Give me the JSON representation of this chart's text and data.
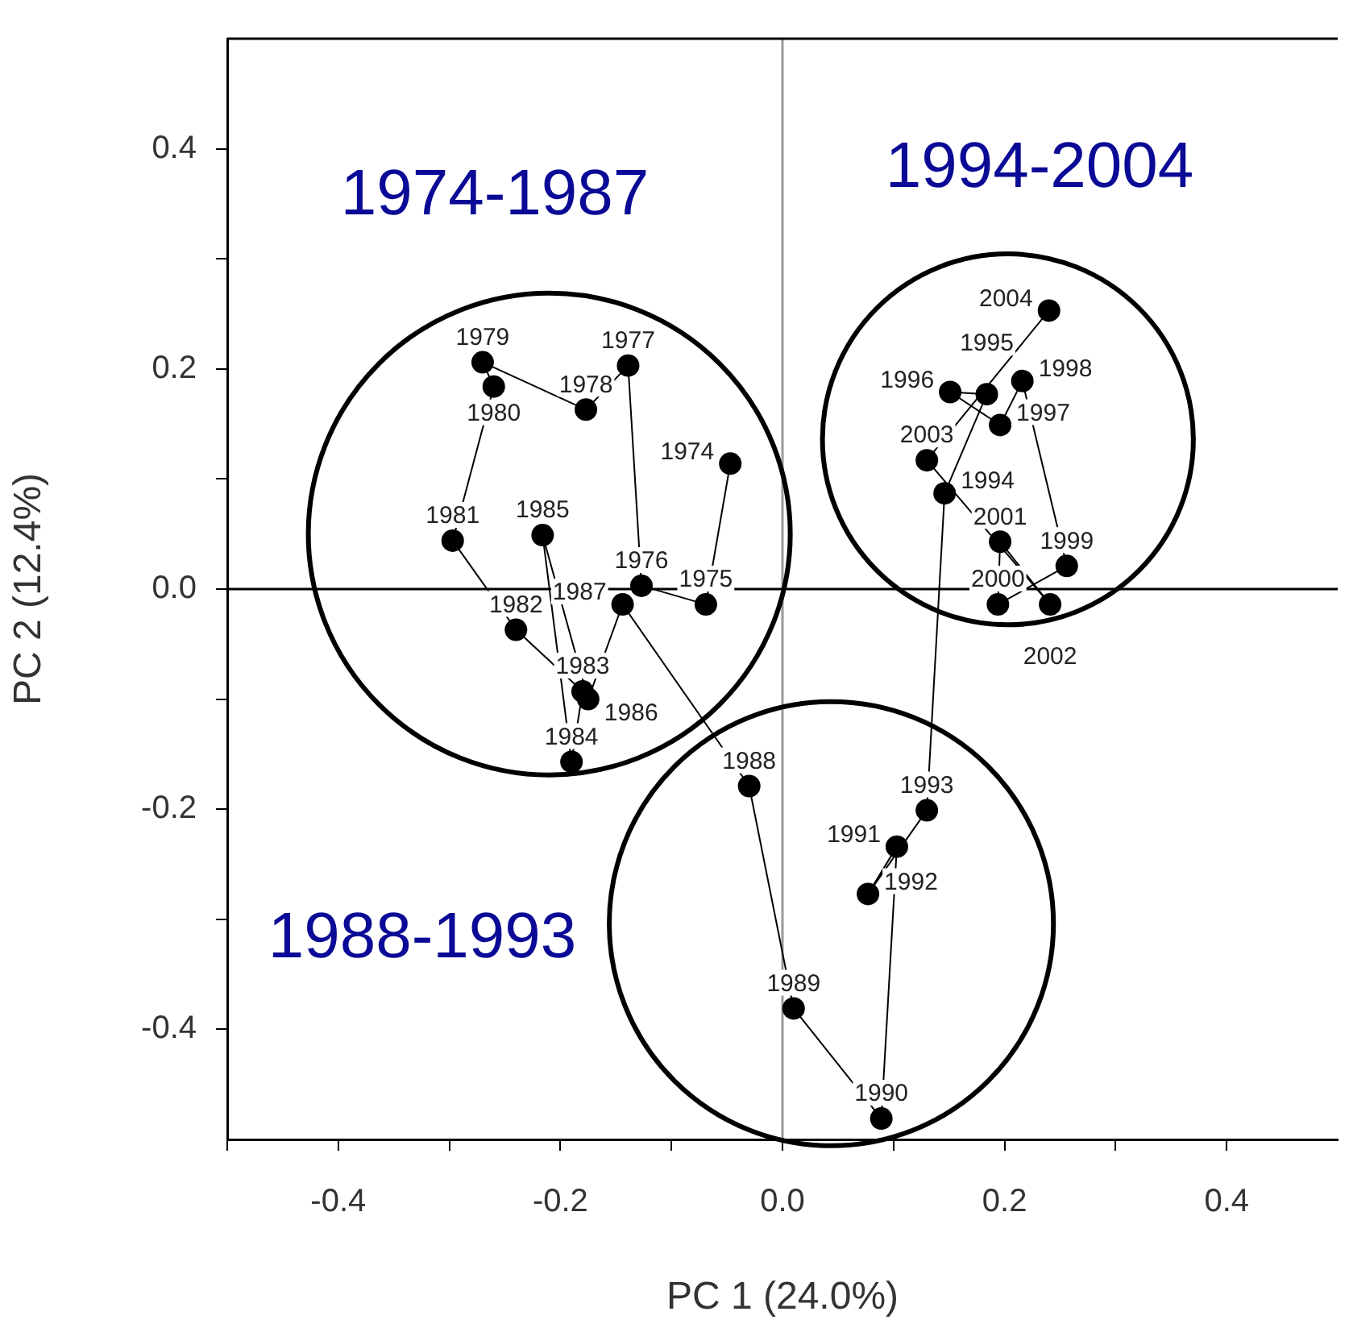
{
  "chart_data": {
    "type": "line",
    "xlabel": "PC 1 (24.0%)",
    "ylabel": "PC 2 (12.4%)",
    "x": [
      -0.047,
      -0.069,
      -0.127,
      -0.139,
      -0.177,
      -0.27,
      -0.26,
      -0.297,
      -0.24,
      -0.18,
      -0.19,
      -0.216,
      -0.175,
      -0.144,
      -0.03,
      0.01,
      0.089,
      0.103,
      0.077,
      0.13,
      0.146,
      0.184,
      0.151,
      0.196,
      0.216,
      0.256,
      0.194,
      0.196,
      0.241,
      0.13,
      0.24
    ],
    "series": [
      {
        "type": "line",
        "color": "#000000",
        "values": [
          0.114,
          -0.014,
          0.003,
          0.203,
          0.163,
          0.206,
          0.184,
          0.044,
          -0.037,
          -0.093,
          -0.157,
          0.049,
          -0.1,
          -0.014,
          -0.179,
          -0.381,
          -0.481,
          -0.234,
          -0.277,
          -0.201,
          0.087,
          0.177,
          0.179,
          0.149,
          0.189,
          0.021,
          -0.014,
          0.043,
          -0.014,
          0.117,
          0.253
        ]
      }
    ],
    "xlim": [
      -0.5,
      0.5
    ],
    "ylim": [
      -0.5,
      0.5
    ],
    "xticks": [
      {
        "value": -0.5,
        "label": null
      },
      -0.4,
      {
        "value": -0.3,
        "label": null
      },
      -0.2,
      {
        "value": -0.1,
        "label": null
      },
      {
        "value": 0,
        "label": "0.0"
      },
      {
        "value": 0.1,
        "label": null
      },
      0.2,
      {
        "value": 0.3,
        "label": null
      },
      0.4
    ],
    "yticks": [
      -0.4,
      {
        "value": -0.3,
        "label": null
      },
      -0.2,
      {
        "value": -0.1,
        "label": null
      },
      {
        "value": 0,
        "label": "0.0"
      },
      {
        "value": 0.1,
        "label": null
      },
      0.2,
      {
        "value": 0.3,
        "label": null
      },
      0.4
    ],
    "ref_lines": [
      {
        "axis": "x",
        "value": 0,
        "color": "#999999"
      },
      {
        "axis": "y",
        "value": 0,
        "color": "#000000"
      }
    ],
    "marker": "circle",
    "line_style": "solid",
    "grid": false,
    "legend": false,
    "annotations": [
      "1974-1987",
      "1994-2004",
      "1988-1993",
      {
        "text": "1974",
        "x": -0.047,
        "y": 0.114
      },
      {
        "text": "1975",
        "x": -0.069,
        "y": -0.014
      },
      {
        "text": "1976",
        "x": -0.127,
        "y": 0.003
      },
      {
        "text": "1977",
        "x": -0.139,
        "y": 0.203
      },
      {
        "text": "1978",
        "x": -0.177,
        "y": 0.163
      },
      {
        "text": "1979",
        "x": -0.27,
        "y": 0.206
      },
      {
        "text": "1980",
        "x": -0.26,
        "y": 0.184
      },
      {
        "text": "1981",
        "x": -0.297,
        "y": 0.044
      },
      {
        "text": "1982",
        "x": -0.24,
        "y": -0.037
      },
      {
        "text": "1983",
        "x": -0.18,
        "y": -0.093
      },
      {
        "text": "1984",
        "x": -0.19,
        "y": -0.157
      },
      {
        "text": "1985",
        "x": -0.216,
        "y": 0.049
      },
      {
        "text": "1986",
        "x": -0.175,
        "y": -0.1
      },
      {
        "text": "1987",
        "x": -0.144,
        "y": -0.014
      },
      {
        "text": "1988",
        "x": -0.03,
        "y": -0.179
      },
      {
        "text": "1989",
        "x": 0.01,
        "y": -0.381
      },
      {
        "text": "1990",
        "x": 0.089,
        "y": -0.481
      },
      {
        "text": "1991",
        "x": 0.103,
        "y": -0.234
      },
      {
        "text": "1992",
        "x": 0.077,
        "y": -0.277
      },
      {
        "text": "1993",
        "x": 0.13,
        "y": -0.201
      },
      {
        "text": "1994",
        "x": 0.146,
        "y": 0.087
      },
      {
        "text": "1995",
        "x": 0.184,
        "y": 0.177
      },
      {
        "text": "1996",
        "x": 0.151,
        "y": 0.179
      },
      {
        "text": "1997",
        "x": 0.196,
        "y": 0.149
      },
      {
        "text": "1998",
        "x": 0.216,
        "y": 0.189
      },
      {
        "text": "1999",
        "x": 0.256,
        "y": 0.021
      },
      {
        "text": "2000",
        "x": 0.194,
        "y": -0.014
      },
      {
        "text": "2001",
        "x": 0.196,
        "y": 0.043
      },
      {
        "text": "2002",
        "x": 0.241,
        "y": -0.014
      },
      {
        "text": "2003",
        "x": 0.13,
        "y": 0.117
      },
      {
        "text": "2004",
        "x": 0.24,
        "y": 0.253
      }
    ]
  }
}
